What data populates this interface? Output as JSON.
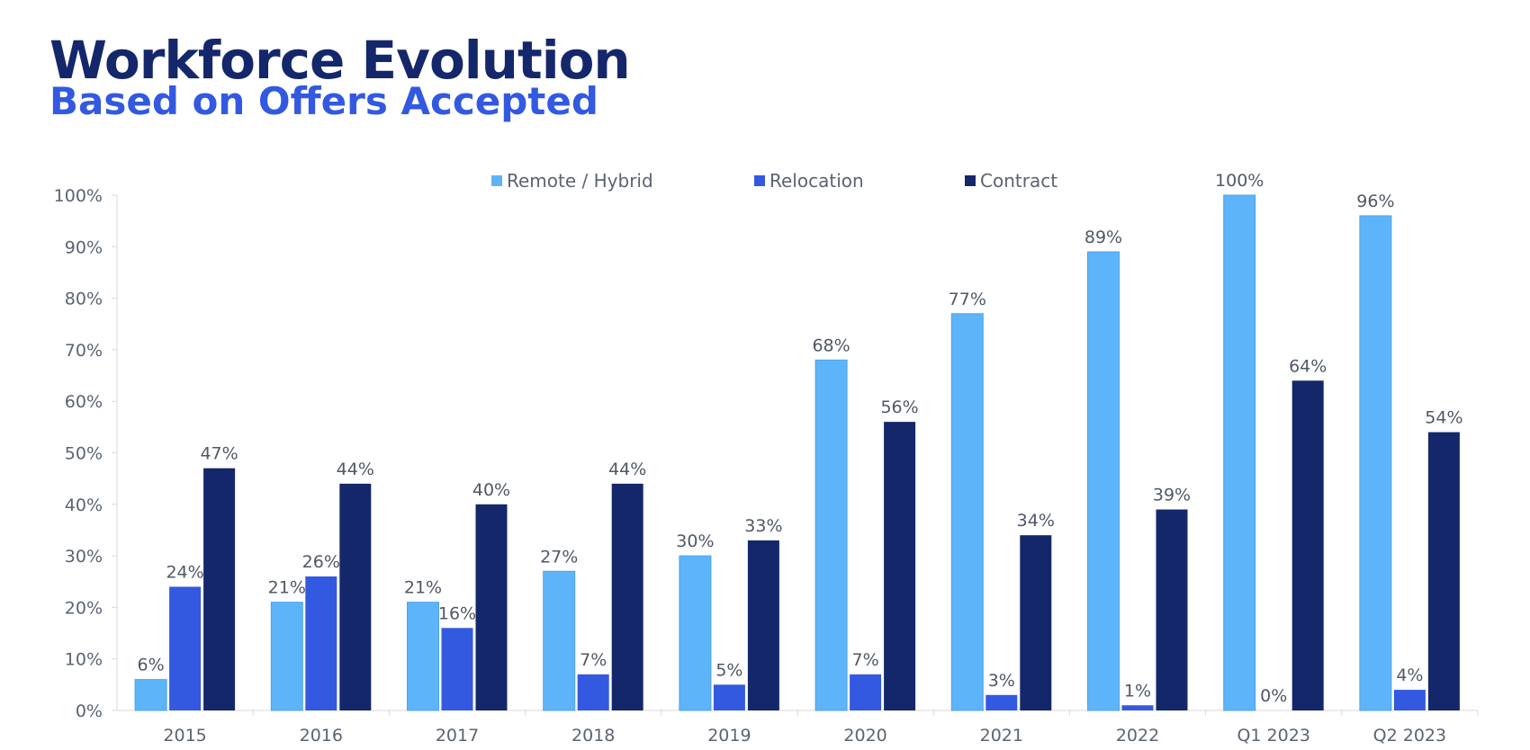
{
  "title": "Workforce Evolution",
  "subtitle": "Based on Offers Accepted",
  "chart_data": {
    "type": "bar",
    "title": "Workforce Evolution",
    "subtitle": "Based on Offers Accepted",
    "xlabel": "",
    "ylabel": "",
    "ylim": [
      0,
      100
    ],
    "yticks": [
      "0%",
      "10%",
      "20%",
      "30%",
      "40%",
      "50%",
      "60%",
      "70%",
      "80%",
      "90%",
      "100%"
    ],
    "categories": [
      "2015",
      "2016",
      "2017",
      "2018",
      "2019",
      "2020",
      "2021",
      "2022",
      "Q1 2023",
      "Q2 2023"
    ],
    "series": [
      {
        "name": "Remote / Hybrid",
        "color": "#5eb4f9",
        "values": [
          6,
          21,
          21,
          27,
          30,
          68,
          77,
          89,
          100,
          96
        ],
        "labels": [
          "6%",
          "21%",
          "21%",
          "27%",
          "30%",
          "68%",
          "77%",
          "89%",
          "100%",
          "96%"
        ]
      },
      {
        "name": "Relocation",
        "color": "#3259e0",
        "values": [
          24,
          26,
          16,
          7,
          5,
          7,
          3,
          1,
          0,
          4
        ],
        "labels": [
          "24%",
          "26%",
          "16%",
          "7%",
          "5%",
          "7%",
          "3%",
          "1%",
          "0%",
          "4%"
        ]
      },
      {
        "name": "Contract",
        "color": "#14276b",
        "values": [
          47,
          44,
          40,
          44,
          33,
          56,
          34,
          39,
          64,
          54
        ],
        "labels": [
          "47%",
          "44%",
          "40%",
          "44%",
          "33%",
          "56%",
          "34%",
          "39%",
          "64%",
          "54%"
        ]
      }
    ],
    "grid": false,
    "legend": "top-center"
  }
}
